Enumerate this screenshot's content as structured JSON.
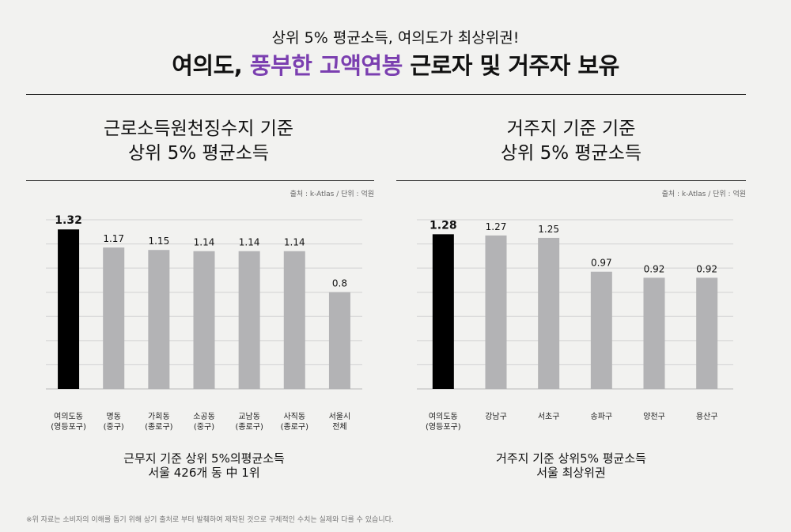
{
  "header": {
    "subtitle": "상위 5% 평균소득, 여의도가 최상위권!",
    "title_part1": "여의도, ",
    "title_highlight": "풍부한 고액연봉",
    "title_part2": " 근로자 및 거주자 보유",
    "highlight_color": "#7b3fb0"
  },
  "left_panel": {
    "title_line1": "근로소득원천징수지 기준",
    "title_line2": "상위 5% 평균소득",
    "source": "출처 : k-Atlas / 단위 : 억원",
    "caption_line1": "근무지 기준 상위 5%의평균소득",
    "caption_line2": "서울 426개 동 中 1위"
  },
  "right_panel": {
    "title_line1": "거주지 기준 기준",
    "title_line2": "상위 5% 평균소득",
    "source": "출처 : k-Atlas / 단위 : 억원",
    "caption_line1": "거주지 기준 상위5% 평균소득",
    "caption_line2": "서울 최상위권"
  },
  "footnote": "※위 자료는 소비자의 이해를 돕기 위해 상기 출처로 부터 발췌하여 제작된 것으로 구체적인 수치는 실제와 다를 수 있습니다.",
  "chart_data": [
    {
      "type": "bar",
      "categories": [
        "여의도동\n(영등포구)",
        "명동\n(중구)",
        "가회동\n(종로구)",
        "소공동\n(중구)",
        "교남동\n(종로구)",
        "사직동\n(종로구)",
        "서울시\n전체"
      ],
      "values": [
        1.32,
        1.17,
        1.15,
        1.14,
        1.14,
        1.14,
        0.8
      ],
      "labels": [
        "1.32",
        "1.17",
        "1.15",
        "1.14",
        "1.14",
        "1.14",
        "0.8"
      ],
      "ylim": [
        0,
        1.4
      ],
      "grid": true,
      "highlight_color": "#000000",
      "bar_color": "#b3b3b5"
    },
    {
      "type": "bar",
      "categories": [
        "여의도동\n(영등포구)",
        "강남구",
        "서초구",
        "송파구",
        "양천구",
        "용산구"
      ],
      "values": [
        1.28,
        1.27,
        1.25,
        0.97,
        0.92,
        0.92
      ],
      "labels": [
        "1.28",
        "1.27",
        "1.25",
        "0.97",
        "0.92",
        "0.92"
      ],
      "ylim": [
        0,
        1.4
      ],
      "grid": true,
      "highlight_color": "#000000",
      "bar_color": "#b3b3b5"
    }
  ]
}
